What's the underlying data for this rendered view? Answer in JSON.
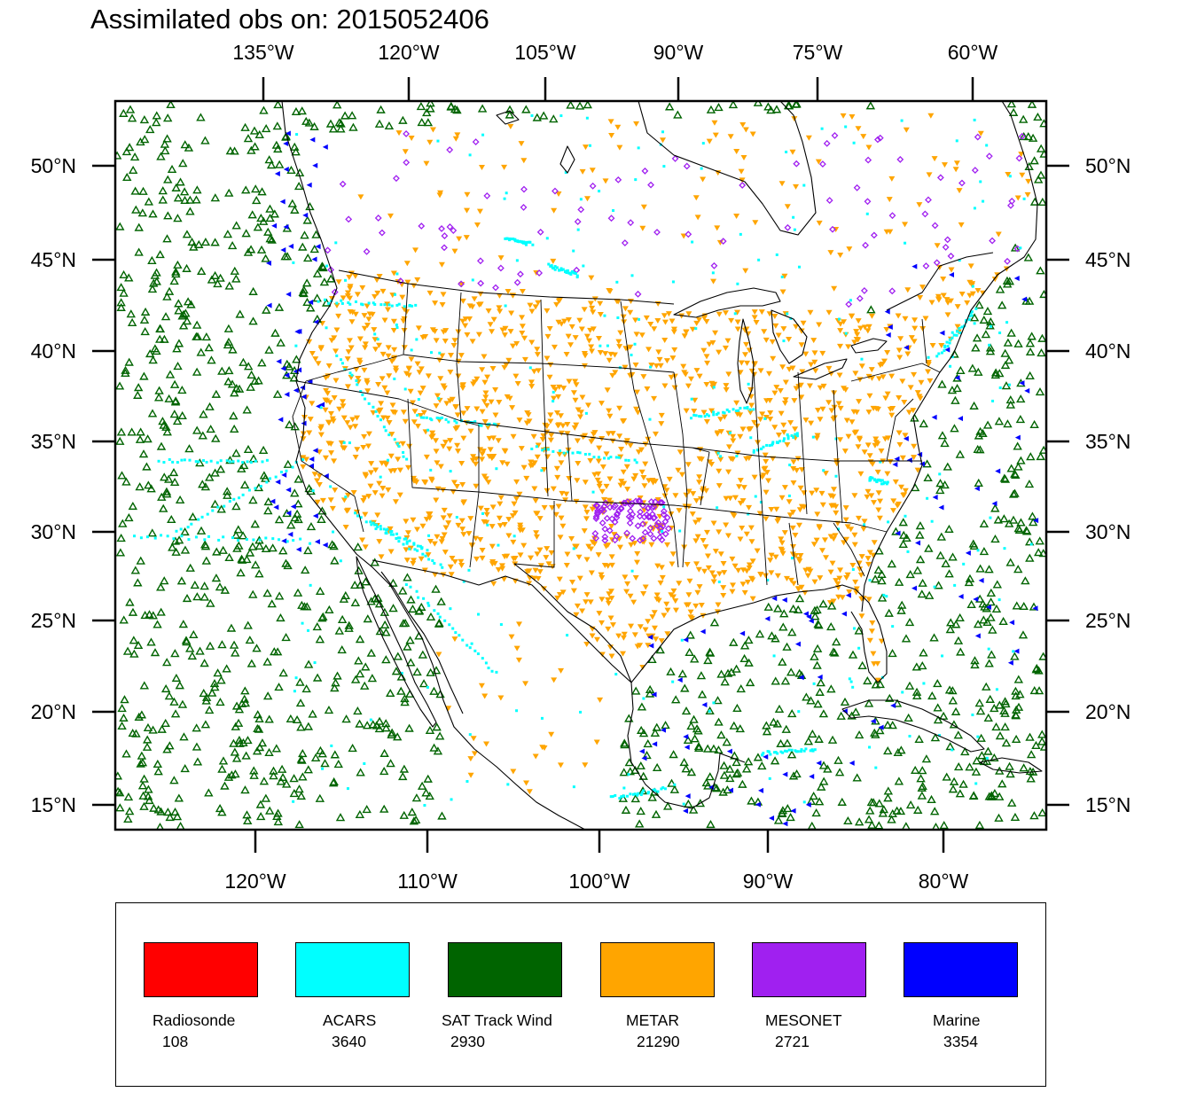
{
  "title": "Assimilated obs on: 2015052406",
  "top_axis_labels": [
    "135°W",
    "120°W",
    "105°W",
    "90°W",
    "75°W",
    "60°W"
  ],
  "bottom_axis_labels": [
    "120°W",
    "110°W",
    "100°W",
    "90°W",
    "80°W"
  ],
  "left_axis_labels": [
    "50°N",
    "45°N",
    "40°N",
    "35°N",
    "30°N",
    "25°N",
    "20°N",
    "15°N"
  ],
  "right_axis_labels": [
    "50°N",
    "45°N",
    "40°N",
    "35°N",
    "30°N",
    "25°N",
    "20°N",
    "15°N"
  ],
  "map_region": {
    "lat_range": [
      14,
      54
    ],
    "lon_range": [
      -128,
      -73
    ],
    "description_free": true
  },
  "legend": [
    {
      "name": "Radiosonde",
      "count": "108",
      "color": "#ff0000"
    },
    {
      "name": "ACARS",
      "count": "3640",
      "color": "#00ffff"
    },
    {
      "name": "SAT Track Wind",
      "count": "2930",
      "color": "#006400"
    },
    {
      "name": "METAR",
      "count": "21290",
      "color": "#ffa500"
    },
    {
      "name": "MESONET",
      "count": "2721",
      "color": "#a020f0"
    },
    {
      "name": "Marine",
      "count": "3354",
      "color": "#0000ff"
    }
  ],
  "icons": {
    "sat_marker": "triangle-up-icon",
    "metar_marker": "triangle-down-icon",
    "mesonet_marker": "diamond-icon",
    "marine_marker": "triangle-left-icon",
    "acars_marker": "square-icon"
  }
}
